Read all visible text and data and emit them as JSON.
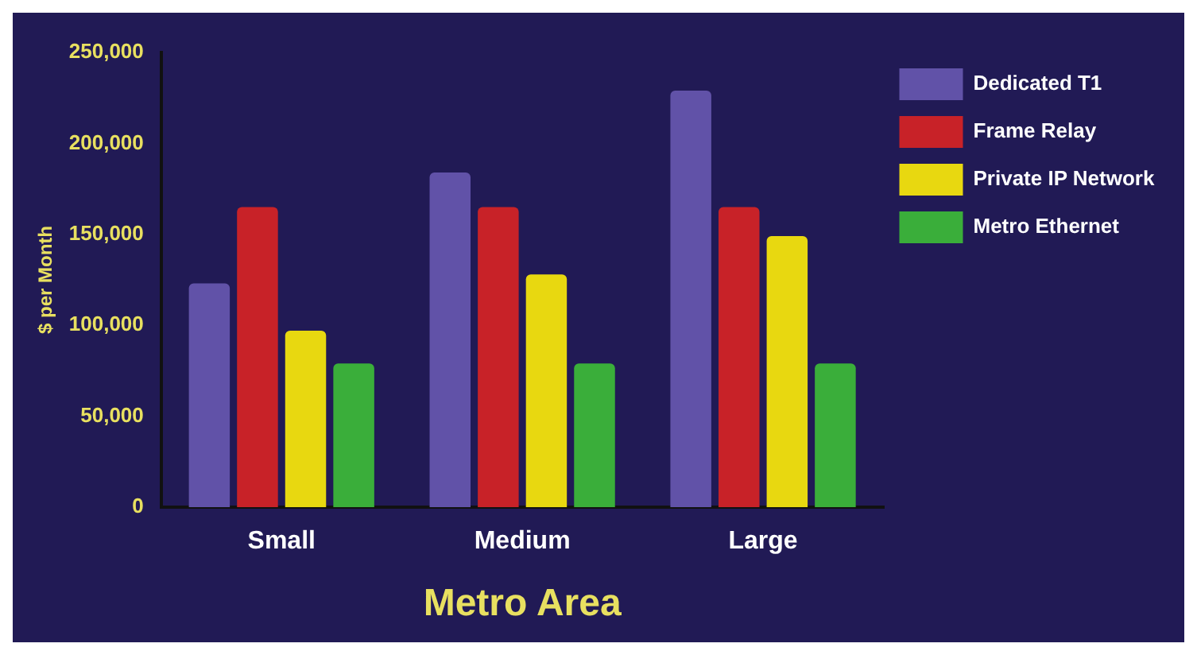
{
  "chart_data": {
    "type": "bar",
    "xlabel": "Metro Area",
    "ylabel": "$ per Month",
    "categories": [
      "Small",
      "Medium",
      "Large"
    ],
    "series": [
      {
        "name": "Dedicated T1",
        "color": "#6152a8",
        "values": [
          123000,
          184000,
          229000
        ]
      },
      {
        "name": "Frame Relay",
        "color": "#c82228",
        "values": [
          165000,
          165000,
          165000
        ]
      },
      {
        "name": "Private IP Network",
        "color": "#e8d810",
        "values": [
          97000,
          128000,
          149000
        ]
      },
      {
        "name": "Metro Ethernet",
        "color": "#3aae3a",
        "values": [
          79000,
          79000,
          79000
        ]
      }
    ],
    "ylim": [
      0,
      250000
    ],
    "yticks": [
      {
        "value": 0,
        "label": "0"
      },
      {
        "value": 50000,
        "label": "50,000"
      },
      {
        "value": 100000,
        "label": "100,000"
      },
      {
        "value": 150000,
        "label": "150,000"
      },
      {
        "value": 200000,
        "label": "200,000"
      },
      {
        "value": 250000,
        "label": "250,000"
      }
    ],
    "grid": false,
    "legend": "top right"
  }
}
